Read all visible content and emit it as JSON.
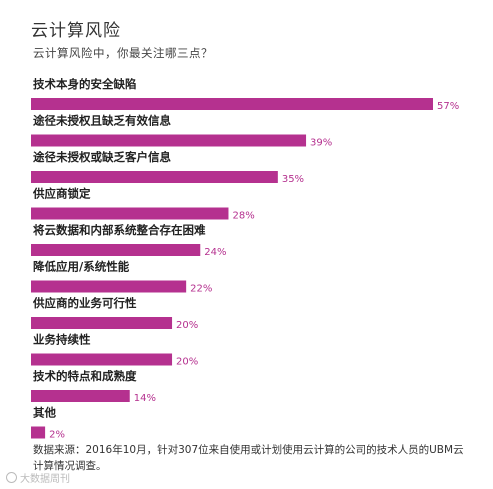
{
  "title": "云计算风险",
  "subtitle": "云计算风险中，你最关注哪三点？",
  "chart_data": {
    "type": "bar",
    "orientation": "horizontal",
    "categories": [
      "技术本身的安全缺陷",
      "途径未授权且缺乏有效信息",
      "途径未授权或缺乏客户信息",
      "供应商锁定",
      "将云数据和内部系统整合存在困难",
      "降低应用/系统性能",
      "供应商的业务可行性",
      "业务持续性",
      "技术的特点和成熟度",
      "其他"
    ],
    "values": [
      57,
      39,
      35,
      28,
      24,
      22,
      20,
      20,
      14,
      2
    ],
    "value_labels": [
      "57%",
      "39%",
      "35%",
      "28%",
      "24%",
      "22%",
      "20%",
      "20%",
      "14%",
      "2%"
    ],
    "xlim": [
      0,
      57
    ],
    "bar_color": "#b5318f"
  },
  "footnote": "数据来源：2016年10月，针对307位来自使用或计划使用云计算的公司的技术人员的UBM云计算情况调查。",
  "watermark": "大数据周刊"
}
